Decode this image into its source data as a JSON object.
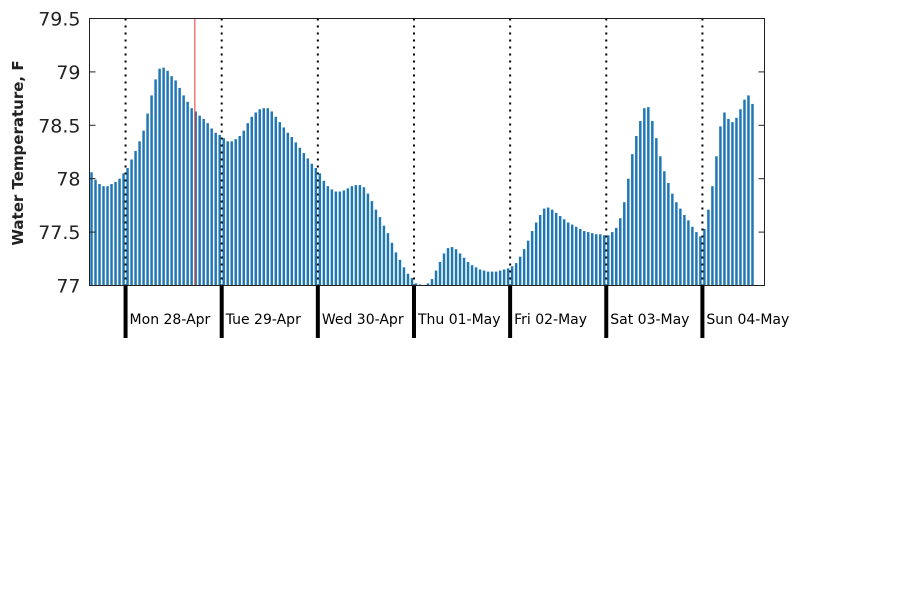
{
  "chart_data": {
    "type": "bar",
    "title": "",
    "xlabel": "",
    "ylabel": "Water Temperature, F",
    "ylim": [
      77,
      79.5
    ],
    "yticks": [
      77,
      77.5,
      78,
      78.5,
      79,
      79.5
    ],
    "ytick_labels": [
      "77",
      "77.5",
      "78",
      "78.5",
      "79",
      "79.5"
    ],
    "grid": false,
    "legend": "none",
    "bar_color": "#1f77b4",
    "marker_color": "#e8382e",
    "x_unit": "hours since first plotted reading (hourly bars)",
    "x_range_hours": [
      0,
      168.5
    ],
    "day_boundaries_hours": [
      9,
      33,
      57,
      81,
      105,
      129,
      153
    ],
    "day_labels": [
      "Mon 28-Apr",
      "Tue 29-Apr",
      "Wed 30-Apr",
      "Thu 01-May",
      "Fri 02-May",
      "Sat 03-May",
      "Sun 04-May"
    ],
    "marker_hour": 26.3,
    "values": [
      78.06,
      77.99,
      77.95,
      77.93,
      77.93,
      77.95,
      77.97,
      78.0,
      78.05,
      78.1,
      78.18,
      78.26,
      78.35,
      78.45,
      78.61,
      78.78,
      78.93,
      79.03,
      79.04,
      79.01,
      78.96,
      78.92,
      78.85,
      78.78,
      78.72,
      78.66,
      78.63,
      78.59,
      78.56,
      78.52,
      78.47,
      78.43,
      78.41,
      78.38,
      78.35,
      78.35,
      78.37,
      78.4,
      78.45,
      78.52,
      78.58,
      78.62,
      78.65,
      78.66,
      78.66,
      78.63,
      78.58,
      78.53,
      78.48,
      78.43,
      78.39,
      78.34,
      78.29,
      78.24,
      78.19,
      78.14,
      78.1,
      78.05,
      77.98,
      77.93,
      77.9,
      77.88,
      77.88,
      77.89,
      77.91,
      77.93,
      77.94,
      77.94,
      77.92,
      77.86,
      77.79,
      77.71,
      77.64,
      77.56,
      77.49,
      77.4,
      77.31,
      77.24,
      77.17,
      77.11,
      77.07,
      77.02,
      77.01,
      77.0,
      77.02,
      77.06,
      77.14,
      77.22,
      77.3,
      77.35,
      77.36,
      77.34,
      77.3,
      77.26,
      77.22,
      77.19,
      77.17,
      77.15,
      77.14,
      77.13,
      77.13,
      77.13,
      77.14,
      77.15,
      77.16,
      77.18,
      77.21,
      77.27,
      77.34,
      77.42,
      77.51,
      77.59,
      77.66,
      77.72,
      77.73,
      77.71,
      77.68,
      77.65,
      77.62,
      77.59,
      77.57,
      77.55,
      77.53,
      77.51,
      77.5,
      77.49,
      77.48,
      77.48,
      77.47,
      77.47,
      77.5,
      77.54,
      77.63,
      77.78,
      78.0,
      78.23,
      78.4,
      78.54,
      78.66,
      78.67,
      78.54,
      78.38,
      78.21,
      78.07,
      77.96,
      77.86,
      77.78,
      77.72,
      77.66,
      77.61,
      77.55,
      77.5,
      77.46,
      77.53,
      77.71,
      77.93,
      78.21,
      78.49,
      78.62,
      78.56,
      78.53,
      78.57,
      78.65,
      78.74,
      78.78,
      78.7
    ]
  }
}
